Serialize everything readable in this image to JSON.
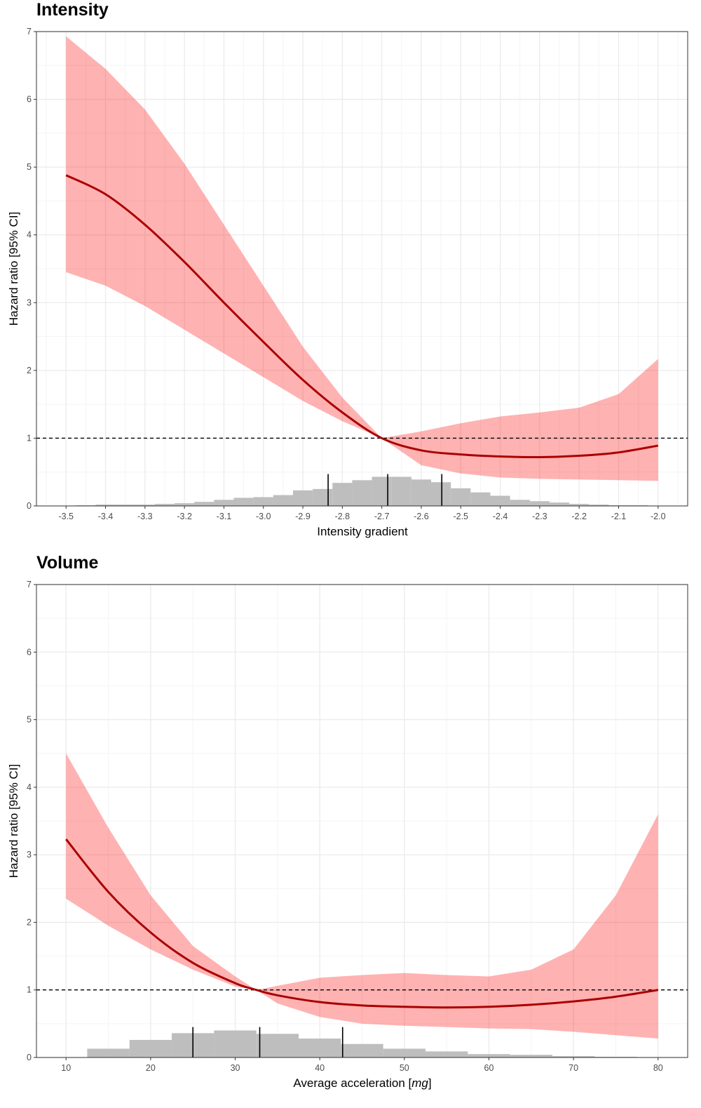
{
  "colors": {
    "band": "#ff0000",
    "band_opacity": 0.3,
    "line": "#aa0000",
    "histogram": "#bebebe",
    "reference_line": "#000000",
    "grid": "#ebebeb"
  },
  "chart_data": [
    {
      "type": "line",
      "title": "Intensity",
      "xlabel": "Intensity gradient",
      "ylabel": "Hazard ratio [95% CI]",
      "xlim": [
        -3.575,
        -1.925
      ],
      "ylim": [
        0,
        7
      ],
      "xticks": [
        -3.5,
        -3.4,
        -3.3,
        -3.2,
        -3.1,
        -3.0,
        -2.9,
        -2.8,
        -2.7,
        -2.6,
        -2.5,
        -2.4,
        -2.3,
        -2.2,
        -2.1,
        -2.0
      ],
      "xtick_labels": [
        "-3.5",
        "-3.4",
        "-3.3",
        "-3.2",
        "-3.1",
        "-3.0",
        "-2.9",
        "-2.8",
        "-2.7",
        "-2.6",
        "-2.5",
        "-2.4",
        "-2.3",
        "-2.2",
        "-2.1",
        "-2.0"
      ],
      "yticks": [
        0,
        1,
        2,
        3,
        4,
        5,
        6,
        7
      ],
      "ytick_labels": [
        "0",
        "1",
        "2",
        "3",
        "4",
        "5",
        "6",
        "7"
      ],
      "grid": true,
      "reference_line": 1,
      "x": [
        -3.5,
        -3.4,
        -3.3,
        -3.2,
        -3.1,
        -3.0,
        -2.9,
        -2.8,
        -2.7,
        -2.6,
        -2.5,
        -2.4,
        -2.3,
        -2.2,
        -2.1,
        -2.0
      ],
      "hr": [
        4.88,
        4.6,
        4.15,
        3.6,
        3.0,
        2.42,
        1.86,
        1.38,
        1.0,
        0.82,
        0.76,
        0.73,
        0.72,
        0.74,
        0.79,
        0.89
      ],
      "ci_low": [
        3.45,
        3.25,
        2.95,
        2.6,
        2.25,
        1.9,
        1.55,
        1.25,
        1.0,
        0.6,
        0.48,
        0.42,
        0.4,
        0.39,
        0.38,
        0.37
      ],
      "ci_high": [
        6.93,
        6.45,
        5.85,
        5.05,
        4.15,
        3.25,
        2.35,
        1.6,
        1.0,
        1.1,
        1.22,
        1.32,
        1.38,
        1.45,
        1.65,
        2.17
      ],
      "histogram": {
        "bin_start": -3.475,
        "bin_width": 0.05,
        "heights": [
          0.01,
          0.02,
          0.02,
          0.02,
          0.03,
          0.04,
          0.06,
          0.09,
          0.12,
          0.13,
          0.16,
          0.23,
          0.25,
          0.34,
          0.38,
          0.43,
          0.43,
          0.39,
          0.35,
          0.26,
          0.2,
          0.15,
          0.09,
          0.07,
          0.05,
          0.03,
          0.02,
          0.01,
          0.01
        ]
      },
      "quantile_lines": [
        -2.836,
        -2.685,
        -2.548
      ],
      "quantile_line_height": 0.47
    },
    {
      "type": "line",
      "title": "Volume",
      "xlabel": "Average acceleration [",
      "xlabel_italic": "mg",
      "xlabel_end": "]",
      "ylabel": "Hazard ratio [95% CI]",
      "xlim": [
        6.5,
        83.5
      ],
      "ylim": [
        0,
        7
      ],
      "xticks": [
        10,
        20,
        30,
        40,
        50,
        60,
        70,
        80
      ],
      "xtick_labels": [
        "10",
        "20",
        "30",
        "40",
        "50",
        "60",
        "70",
        "80"
      ],
      "yticks": [
        0,
        1,
        2,
        3,
        4,
        5,
        6,
        7
      ],
      "ytick_labels": [
        "0",
        "1",
        "2",
        "3",
        "4",
        "5",
        "6",
        "7"
      ],
      "grid": true,
      "reference_line": 1,
      "x": [
        10,
        15,
        20,
        25,
        30,
        32.5,
        35,
        40,
        45,
        50,
        55,
        60,
        65,
        70,
        75,
        80
      ],
      "hr": [
        3.23,
        2.45,
        1.85,
        1.4,
        1.1,
        1.0,
        0.92,
        0.82,
        0.77,
        0.75,
        0.74,
        0.75,
        0.78,
        0.83,
        0.9,
        1.0
      ],
      "ci_low": [
        2.35,
        1.95,
        1.6,
        1.3,
        1.05,
        1.0,
        0.8,
        0.6,
        0.5,
        0.47,
        0.45,
        0.43,
        0.42,
        0.38,
        0.33,
        0.28
      ],
      "ci_high": [
        4.5,
        3.4,
        2.4,
        1.65,
        1.2,
        1.0,
        1.06,
        1.18,
        1.22,
        1.25,
        1.22,
        1.2,
        1.3,
        1.6,
        2.4,
        3.6
      ],
      "histogram": {
        "bin_start": 12.5,
        "bin_width": 5,
        "heights": [
          0.13,
          0.26,
          0.36,
          0.4,
          0.35,
          0.28,
          0.2,
          0.13,
          0.09,
          0.05,
          0.04,
          0.02,
          0.01
        ]
      },
      "quantile_lines": [
        25.0,
        32.9,
        42.7
      ],
      "quantile_line_height": 0.45
    }
  ]
}
